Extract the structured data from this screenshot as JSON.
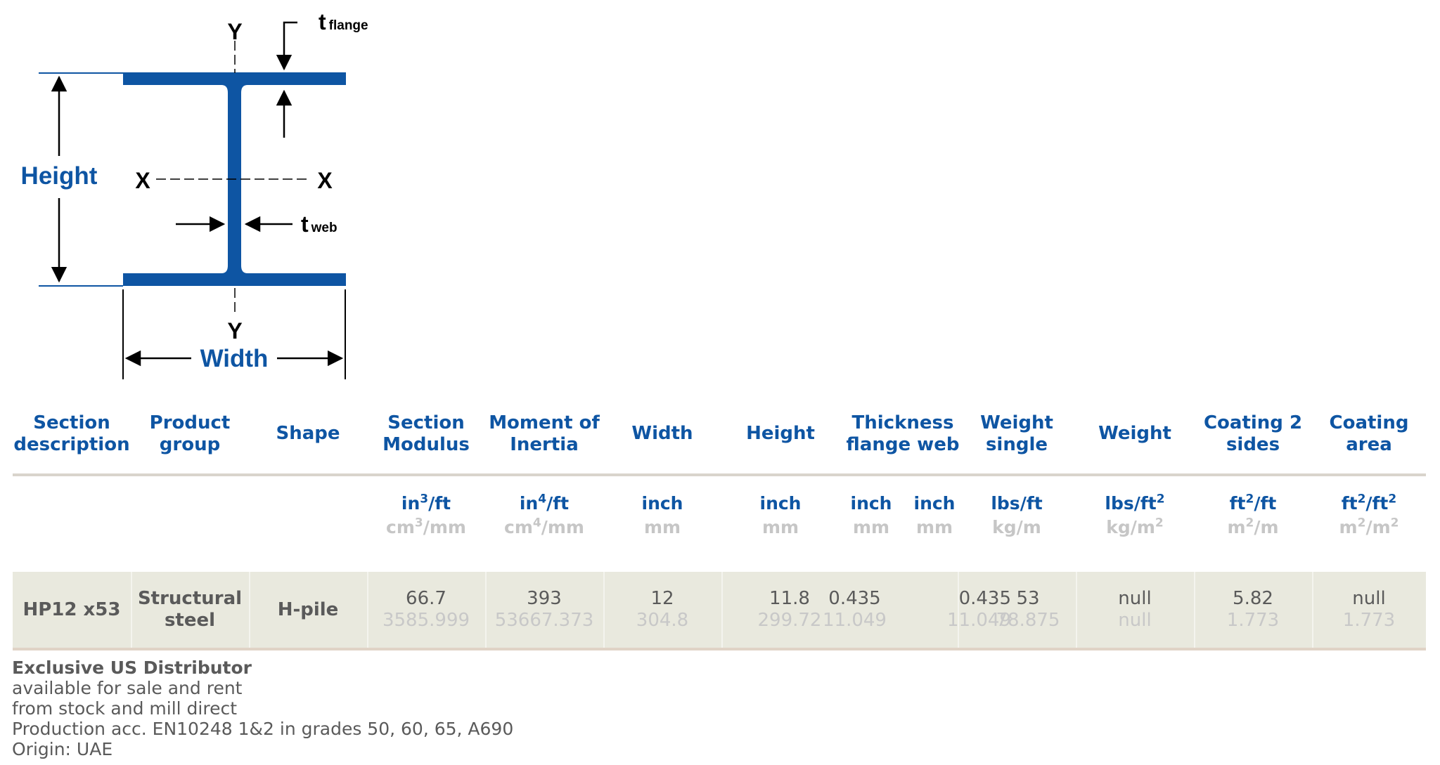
{
  "diagram": {
    "label_height": "Height",
    "label_width": "Width",
    "axis_y": "Y",
    "axis_x": "X",
    "t_main": "t",
    "t_flange_sub": "flange",
    "t_web_sub": "web",
    "color": "#0e55a3"
  },
  "table": {
    "headers": [
      {
        "l1": "Section",
        "l2": "description"
      },
      {
        "l1": "Product",
        "l2": "group"
      },
      {
        "l1": "Shape",
        "l2": ""
      },
      {
        "l1": "Section",
        "l2": "Modulus"
      },
      {
        "l1": "Moment of",
        "l2": "Inertia"
      },
      {
        "l1": "Width",
        "l2": ""
      },
      {
        "l1": "Height",
        "l2": ""
      },
      {
        "l1": "Thickness",
        "l2": "flange web"
      },
      {
        "l1": "Weight",
        "l2": "single"
      },
      {
        "l1": "Weight",
        "l2": ""
      },
      {
        "l1": "Coating 2",
        "l2": "sides"
      },
      {
        "l1": "Coating",
        "l2": "area"
      }
    ],
    "units": {
      "section_modulus": {
        "imp_a": "in",
        "imp_sup": "3",
        "imp_b": "/ft",
        "met_a": "cm",
        "met_sup": "3",
        "met_b": "/mm"
      },
      "moment_of_inertia": {
        "imp_a": "in",
        "imp_sup": "4",
        "imp_b": "/ft",
        "met_a": "cm",
        "met_sup": "4",
        "met_b": "/mm"
      },
      "width": {
        "imp": "inch",
        "met": "mm"
      },
      "height": {
        "imp": "inch",
        "met": "mm"
      },
      "thickness_flange": {
        "imp": "inch",
        "met": "mm"
      },
      "thickness_web": {
        "imp": "inch",
        "met": "mm"
      },
      "weight_single": {
        "imp": "lbs/ft",
        "met": "kg/m"
      },
      "weight": {
        "imp_a": "lbs/ft",
        "imp_sup": "2",
        "met_a": "kg/m",
        "met_sup": "2"
      },
      "coating_2_sides": {
        "imp_a": "ft",
        "imp_sup": "2",
        "imp_b": "/ft",
        "met_a": "m",
        "met_sup": "2",
        "met_b": "/m"
      },
      "coating_area": {
        "imp_a": "ft",
        "imp_sup": "2",
        "imp_b": "/ft",
        "imp_sup2": "2",
        "met_a": "m",
        "met_sup": "2",
        "met_b": "/m",
        "met_sup2": "2"
      }
    },
    "row": {
      "section_description": "HP12 x53",
      "product_group_l1": "Structural",
      "product_group_l2": "steel",
      "shape": "H-pile",
      "section_modulus": {
        "imp": "66.7",
        "met": "3585.999"
      },
      "moment_of_inertia": {
        "imp": "393",
        "met": "53667.373"
      },
      "width": {
        "imp": "12",
        "met": "304.8"
      },
      "height": {
        "imp": "11.8",
        "met": "299.72"
      },
      "thickness_flange": {
        "imp": "0.435",
        "met": "11.049"
      },
      "thickness_web": {
        "imp": "0.435",
        "met": "11.049"
      },
      "weight_single": {
        "imp": "53",
        "met": "78.875"
      },
      "weight": {
        "imp": "null",
        "met": "null"
      },
      "coating_2_sides": {
        "imp": "5.82",
        "met": "1.773"
      },
      "coating_area": {
        "imp": "null",
        "met": "1.773"
      }
    }
  },
  "notes": {
    "title": "Exclusive US Distributor",
    "lines": [
      "available for sale and rent",
      "from stock and mill direct",
      "Production acc. EN10248 1&2 in grades 50, 60, 65, A690",
      "Origin: UAE"
    ]
  },
  "colors": {
    "brand_blue": "#0e55a3",
    "metric_grey": "#c6c6c6",
    "row_bg": "#e9e9de",
    "text_grey": "#5a5a5a"
  }
}
